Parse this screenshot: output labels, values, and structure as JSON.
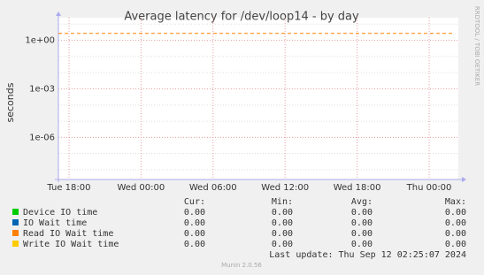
{
  "chart_data": {
    "type": "line",
    "title": "Average latency for /dev/loop14 - by day",
    "y_label": "seconds",
    "y_log": true,
    "grid": true,
    "ylim": [
      2.5e-09,
      25
    ],
    "yticks": [
      {
        "value": 1,
        "label": "1e+00"
      },
      {
        "value": 0.001,
        "label": "1e-03"
      },
      {
        "value": 1e-06,
        "label": "1e-06"
      }
    ],
    "xlim": [
      17.12,
      50.43
    ],
    "xticks": [
      {
        "value": 18,
        "label": "Tue 18:00"
      },
      {
        "value": 24,
        "label": "Wed 00:00"
      },
      {
        "value": 30,
        "label": "Wed 06:00"
      },
      {
        "value": 36,
        "label": "Wed 12:00"
      },
      {
        "value": 42,
        "label": "Wed 18:00"
      },
      {
        "value": 48,
        "label": "Thu 00:00"
      }
    ],
    "dashed_line": {
      "value": 2.7,
      "color": "#ff8000"
    },
    "stat_headers": [
      "Cur:",
      "Min:",
      "Avg:",
      "Max:"
    ],
    "series": [
      {
        "name": "Device IO time",
        "color": "#00cc00",
        "values": [
          0,
          0,
          0,
          0
        ],
        "value_labels": [
          "0.00",
          "0.00",
          "0.00",
          "0.00"
        ]
      },
      {
        "name": "IO Wait time",
        "color": "#0066b3",
        "values": [
          0,
          0,
          0,
          0
        ],
        "value_labels": [
          "0.00",
          "0.00",
          "0.00",
          "0.00"
        ]
      },
      {
        "name": "Read IO Wait time",
        "color": "#ff8000",
        "values": [
          0,
          0,
          0,
          0
        ],
        "value_labels": [
          "0.00",
          "0.00",
          "0.00",
          "0.00"
        ]
      },
      {
        "name": "Write IO Wait time",
        "color": "#ffcc00",
        "values": [
          0,
          0,
          0,
          0
        ],
        "value_labels": [
          "0.00",
          "0.00",
          "0.00",
          "0.00"
        ]
      }
    ],
    "last_update": "Last update: Thu Sep 12 02:25:07 2024",
    "watermark": "RRDTOOL / TOBI OETIKER",
    "footer": "Munin 2.0.56"
  }
}
